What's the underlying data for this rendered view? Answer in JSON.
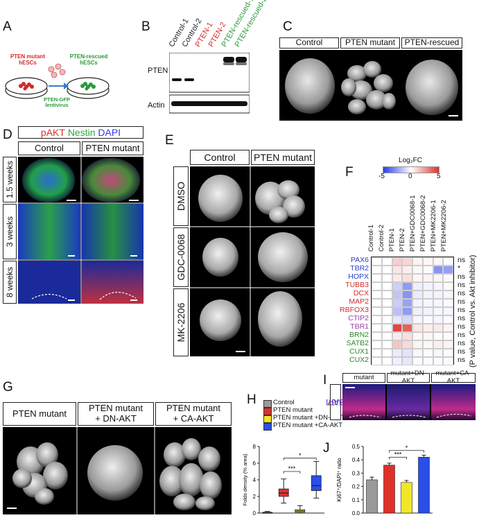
{
  "panels": {
    "A": {
      "label": "A",
      "left": "PTEN mutant\nhESCs",
      "right": "PTEN-rescued\nhESCs",
      "arrow": "PTEN-GFP\nlentivirus"
    },
    "B": {
      "label": "B",
      "lanes": [
        "Control-1",
        "Control-2",
        "PTEN-1",
        "PTEN-2",
        "PTEN-rescued-1",
        "PTEN-rescued-2"
      ],
      "lane_colors": [
        "#222222",
        "#222222",
        "#d42a2a",
        "#d42a2a",
        "#2a9a3a",
        "#2a9a3a"
      ],
      "rows": [
        "PTEN",
        "Actin"
      ]
    },
    "C": {
      "label": "C",
      "headers": [
        "Control",
        "PTEN mutant",
        "PTEN-rescued"
      ]
    },
    "D": {
      "label": "D",
      "stain": {
        "a": "pAKT",
        "b": "Nestin",
        "c": "DAPI"
      },
      "headers": [
        "Control",
        "PTEN mutant"
      ],
      "rows": [
        "1.5 weeks",
        "3 weeks",
        "8 weeks"
      ]
    },
    "E": {
      "label": "E",
      "headers": [
        "Control",
        "PTEN mutant"
      ],
      "rows": [
        "DMSO",
        "GDC-0068",
        "MK-2206"
      ]
    },
    "F": {
      "label": "F",
      "legend_title": "Log₂FC",
      "legend_ticks": [
        "-5",
        "0",
        "5"
      ],
      "columns": [
        "Control-1",
        "Control-2",
        "PTEN-1",
        "PTEN-2",
        "PTEN+GDC0068-1",
        "PTEN+GDC0068-2",
        "PTEN+MK2206-1",
        "PTEN+MK2206-2"
      ],
      "genes": [
        {
          "name": "PAX6",
          "color": "#2a3ec8",
          "sig": "ns"
        },
        {
          "name": "TBR2",
          "color": "#2a3ec8",
          "sig": "*"
        },
        {
          "name": "HOPX",
          "color": "#2a3ec8",
          "sig": "ns"
        },
        {
          "name": "TUBB3",
          "color": "#d42a2a",
          "sig": "ns"
        },
        {
          "name": "DCX",
          "color": "#d42a2a",
          "sig": "ns"
        },
        {
          "name": "MAP2",
          "color": "#d42a2a",
          "sig": "ns"
        },
        {
          "name": "RBFOX3",
          "color": "#d42a2a",
          "sig": "ns"
        },
        {
          "name": "CTIP2",
          "color": "#9a3aa8",
          "sig": "ns"
        },
        {
          "name": "TBR1",
          "color": "#9a3aa8",
          "sig": "ns"
        },
        {
          "name": "BRN2",
          "color": "#2a8a2a",
          "sig": "ns"
        },
        {
          "name": "SATB2",
          "color": "#2a8a2a",
          "sig": "ns"
        },
        {
          "name": "CUX1",
          "color": "#2a8a2a",
          "sig": "ns"
        },
        {
          "name": "CUX2",
          "color": "#2a8a2a",
          "sig": "ns"
        }
      ],
      "side_label": "(P value, Control vs. Akt inhibitor)"
    },
    "G": {
      "label": "G",
      "headers": [
        "PTEN mutant",
        "PTEN mutant\n+ DN-AKT",
        "PTEN mutant\n+ CA-AKT"
      ]
    },
    "H": {
      "label": "H",
      "ylabel": "Folds density (% area)",
      "legend": [
        {
          "name": "Control",
          "color": "#9a9a9a"
        },
        {
          "name": "PTEN mutant",
          "color": "#e0302a"
        },
        {
          "name": "PTEN mutant +DN-AKT",
          "color": "#f2e62a"
        },
        {
          "name": "PTEN mutant +CA-AKT",
          "color": "#2a4ee8"
        }
      ]
    },
    "I": {
      "label": "I",
      "headers": [
        "mutant",
        "mutant+DN-AKT",
        "mutant+CA-AKT"
      ],
      "side": {
        "a": "Ki67",
        "b": "DAPI"
      }
    },
    "J": {
      "label": "J",
      "ylabel": "Ki67⁺/DAPI⁺ ratio"
    }
  },
  "chart_data": [
    {
      "type": "heatmap",
      "title": "Log₂FC",
      "columns": [
        "Control-1",
        "Control-2",
        "PTEN-1",
        "PTEN-2",
        "PTEN+GDC0068-1",
        "PTEN+GDC0068-2",
        "PTEN+MK2206-1",
        "PTEN+MK2206-2"
      ],
      "rows": [
        "PAX6",
        "TBR2",
        "HOPX",
        "TUBB3",
        "DCX",
        "MAP2",
        "RBFOX3",
        "CTIP2",
        "TBR1",
        "BRN2",
        "SATB2",
        "CUX1",
        "CUX2"
      ],
      "values": [
        [
          0,
          0,
          1.2,
          1.0,
          0.3,
          0.2,
          0.2,
          0.1
        ],
        [
          0,
          0,
          0.6,
          0.4,
          0.2,
          0.1,
          -2.8,
          -2.5
        ],
        [
          0,
          0,
          0.5,
          0.8,
          0.2,
          0.3,
          0.2,
          0.1
        ],
        [
          0,
          0,
          -1.2,
          -2.6,
          -0.4,
          -0.3,
          -0.2,
          -0.1
        ],
        [
          0,
          0,
          -1.5,
          -2.8,
          -0.5,
          -0.3,
          -0.3,
          -0.2
        ],
        [
          0,
          0,
          -1.3,
          -2.4,
          -0.3,
          -0.2,
          -0.2,
          -0.1
        ],
        [
          0,
          0,
          -1.6,
          -2.6,
          -0.4,
          -0.3,
          -0.2,
          -0.2
        ],
        [
          0,
          0,
          -0.6,
          -1.0,
          -0.2,
          -0.1,
          -0.2,
          -0.1
        ],
        [
          0,
          0,
          4.5,
          3.8,
          0.6,
          0.4,
          0.5,
          0.3
        ],
        [
          0,
          0,
          0.5,
          0.8,
          0.2,
          0.2,
          0.1,
          0.1
        ],
        [
          0,
          0,
          1.4,
          0.9,
          0.3,
          0.2,
          0.4,
          0.3
        ],
        [
          0,
          0,
          -0.5,
          -0.7,
          -0.2,
          -0.1,
          -0.2,
          -0.1
        ],
        [
          0,
          0,
          -0.4,
          -0.6,
          -0.1,
          -0.1,
          -0.1,
          -0.1
        ]
      ],
      "range": [
        -5,
        5
      ]
    },
    {
      "type": "box",
      "ylabel": "Folds density (% area)",
      "ylim": [
        0,
        8
      ],
      "yticks": [
        0,
        2,
        4,
        6,
        8
      ],
      "groups": [
        {
          "name": "Control",
          "min": 0.0,
          "q1": 0.02,
          "median": 0.05,
          "q3": 0.1,
          "max": 0.2,
          "color": "#9a9a9a"
        },
        {
          "name": "PTEN mutant",
          "min": 1.2,
          "q1": 2.0,
          "median": 2.4,
          "q3": 2.9,
          "max": 4.1,
          "color": "#e0302a"
        },
        {
          "name": "PTEN mutant +DN-AKT",
          "min": 0.0,
          "q1": 0.1,
          "median": 0.25,
          "q3": 0.4,
          "max": 0.9,
          "color": "#f2e62a"
        },
        {
          "name": "PTEN mutant +CA-AKT",
          "min": 1.8,
          "q1": 2.7,
          "median": 3.3,
          "q3": 4.5,
          "max": 6.2,
          "color": "#2a4ee8"
        }
      ],
      "significance": [
        {
          "from": 1,
          "to": 2,
          "label": "***"
        },
        {
          "from": 1,
          "to": 3,
          "label": "*"
        }
      ]
    },
    {
      "type": "bar",
      "ylabel": "Ki67⁺/DAPI⁺ ratio",
      "ylim": [
        0,
        0.5
      ],
      "yticks": [
        0,
        0.1,
        0.2,
        0.3,
        0.4,
        0.5
      ],
      "categories": [
        "Control",
        "PTEN mutant",
        "PTEN mutant +DN-AKT",
        "PTEN mutant +CA-AKT"
      ],
      "values": [
        0.25,
        0.36,
        0.23,
        0.42
      ],
      "errors": [
        0.02,
        0.015,
        0.015,
        0.015
      ],
      "colors": [
        "#9a9a9a",
        "#e0302a",
        "#f2e62a",
        "#2a4ee8"
      ],
      "significance": [
        {
          "from": 1,
          "to": 2,
          "label": "***"
        },
        {
          "from": 1,
          "to": 3,
          "label": "*"
        }
      ]
    }
  ]
}
